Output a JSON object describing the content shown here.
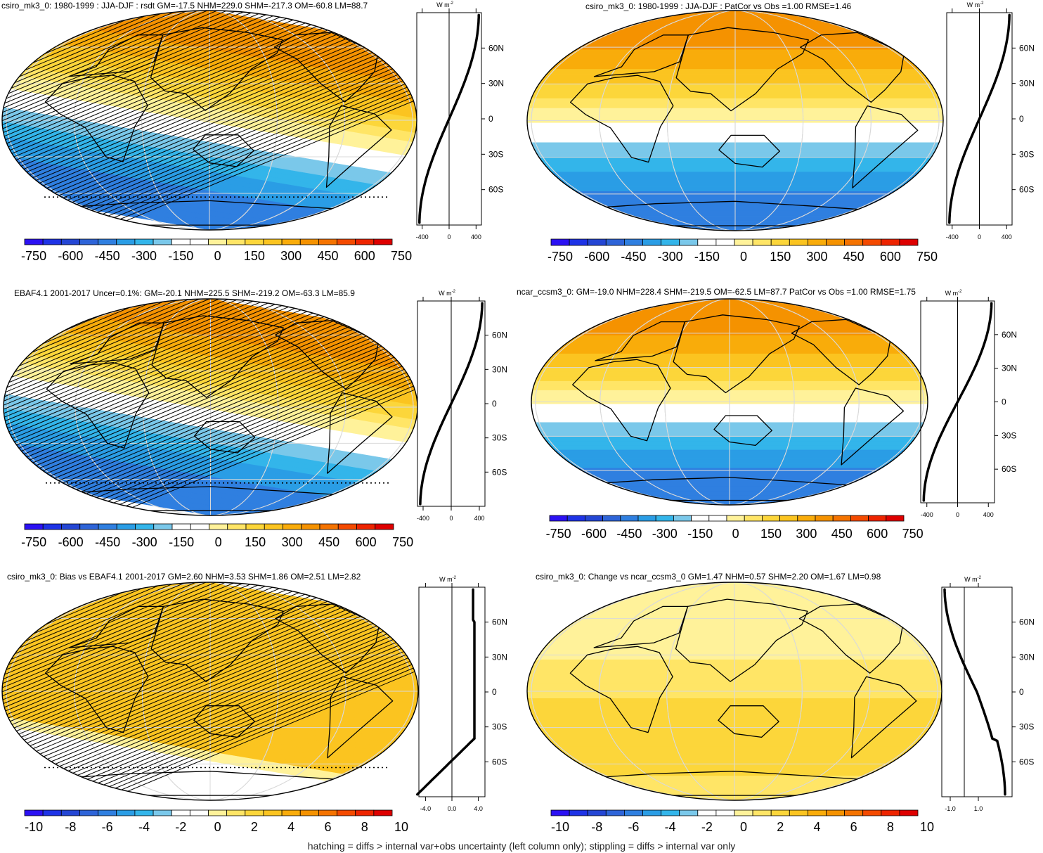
{
  "footer": "hatching = diffs > internal var+obs uncertainty (left column only); stippling = diffs > internal var only",
  "unit_label": "W m",
  "unit_sup": "-2",
  "colors": {
    "ramp": [
      "#2b11f3",
      "#1e33e6",
      "#2446d4",
      "#2e64d8",
      "#2f7fe0",
      "#2a9de5",
      "#33b5ea",
      "#7ac8ea",
      "#ffffff",
      "#ffffff",
      "#fff29a",
      "#ffe566",
      "#fcd63a",
      "#fbc420",
      "#f9ac0a",
      "#f59200",
      "#f57300",
      "#f44a00",
      "#ee2400",
      "#de0000"
    ],
    "land": "#000000",
    "grid": "#d9d9d9"
  },
  "chart_data": [
    {
      "type": "heatmap",
      "panel": "top-left",
      "title": "csiro_mk3_0: 1980-1999 : JJA-DJF : rsdt GM=-17.5 NHM=229.0 SHM=-217.3 OM=-60.8 LM=88.7",
      "field": "sine",
      "amplitude": 420,
      "hatching": true,
      "tilt": 0.3,
      "colorbar_ticks": [
        "-750",
        "-600",
        "-450",
        "-300",
        "-150",
        "0",
        "150",
        "300",
        "450",
        "600",
        "750"
      ],
      "levels": [
        -750,
        -675,
        -600,
        -525,
        -450,
        -375,
        -300,
        -225,
        -150,
        -75,
        0,
        75,
        150,
        225,
        300,
        375,
        450,
        525,
        600,
        675,
        750
      ],
      "profile": {
        "x_ticks": [
          "-400",
          "0",
          "400"
        ],
        "xlim": [
          -480,
          480
        ],
        "y_ticks": [
          "60N",
          "30N",
          "0",
          "30S",
          "60S"
        ]
      }
    },
    {
      "type": "heatmap",
      "panel": "top-right",
      "title": "csiro_mk3_0: 1980-1999 : JJA-DJF : PatCor vs Obs =1.00 RMSE=1.46",
      "field": "sine",
      "amplitude": 420,
      "hatching": false,
      "tilt": 0,
      "colorbar_ticks": [
        "-750",
        "-600",
        "-450",
        "-300",
        "-150",
        "0",
        "150",
        "300",
        "450",
        "600",
        "750"
      ],
      "levels": [
        -750,
        -675,
        -600,
        -525,
        -450,
        -375,
        -300,
        -225,
        -150,
        -75,
        0,
        75,
        150,
        225,
        300,
        375,
        450,
        525,
        600,
        675,
        750
      ],
      "profile": {
        "x_ticks": [
          "-400",
          "0",
          "400"
        ],
        "xlim": [
          -480,
          480
        ],
        "y_ticks": [
          "60N",
          "30N",
          "0",
          "30S",
          "60S"
        ]
      }
    },
    {
      "type": "heatmap",
      "panel": "middle-left",
      "title": "EBAF4.1 2001-2017 Uncer=0.1%: GM=-20.1 NHM=225.5 SHM=-219.2 OM=-63.3 LM=85.9",
      "field": "sine",
      "amplitude": 420,
      "hatching": true,
      "tilt": 0.3,
      "colorbar_ticks": [
        "-750",
        "-600",
        "-450",
        "-300",
        "-150",
        "0",
        "150",
        "300",
        "450",
        "600",
        "750"
      ],
      "levels": [
        -750,
        -675,
        -600,
        -525,
        -450,
        -375,
        -300,
        -225,
        -150,
        -75,
        0,
        75,
        150,
        225,
        300,
        375,
        450,
        525,
        600,
        675,
        750
      ],
      "profile": {
        "x_ticks": [
          "-400",
          "0",
          "400"
        ],
        "xlim": [
          -480,
          480
        ],
        "y_ticks": [
          "60N",
          "30N",
          "0",
          "30S",
          "60S"
        ]
      }
    },
    {
      "type": "heatmap",
      "panel": "middle-right",
      "title": "ncar_ccsm3_0: GM=-19.0 NHM=228.4 SHM=-219.5 OM=-62.5 LM=87.7 PatCor vs Obs =1.00 RMSE=1.75",
      "field": "sine",
      "amplitude": 420,
      "hatching": false,
      "tilt": 0,
      "colorbar_ticks": [
        "-750",
        "-600",
        "-450",
        "-300",
        "-150",
        "0",
        "150",
        "300",
        "450",
        "600",
        "750"
      ],
      "levels": [
        -750,
        -675,
        -600,
        -525,
        -450,
        -375,
        -300,
        -225,
        -150,
        -75,
        0,
        75,
        150,
        225,
        300,
        375,
        450,
        525,
        600,
        675,
        750
      ],
      "profile": {
        "x_ticks": [
          "-400",
          "0",
          "400"
        ],
        "xlim": [
          -480,
          480
        ],
        "y_ticks": [
          "60N",
          "30N",
          "0",
          "30S",
          "60S"
        ]
      }
    },
    {
      "type": "heatmap",
      "panel": "bottom-left",
      "title": "csiro_mk3_0: Bias vs EBAF4.1 2001-2017 GM=2.60 NHM=3.53 SHM=1.86 OM=2.51 LM=2.82",
      "field": "bias",
      "hatching": true,
      "tilt": 0.3,
      "colorbar_ticks": [
        "-10",
        "-8",
        "-6",
        "-4",
        "-2",
        "0",
        "2",
        "4",
        "6",
        "8",
        "10"
      ],
      "levels": [
        -10,
        -9,
        -8,
        -7,
        -6,
        -5,
        -4,
        -3,
        -2,
        -1,
        0,
        1,
        2,
        3,
        4,
        5,
        6,
        7,
        8,
        9,
        10
      ],
      "profile": {
        "x_ticks": [
          "-4.0",
          "0.0",
          "4.0"
        ],
        "xlim": [
          -5,
          5
        ],
        "y_ticks": [
          "60N",
          "30N",
          "0",
          "30S",
          "60S"
        ]
      }
    },
    {
      "type": "heatmap",
      "panel": "bottom-right",
      "title": "csiro_mk3_0: Change vs ncar_ccsm3_0 GM=1.47 NHM=0.57 SHM=2.20 OM=1.67 LM=0.98",
      "field": "change",
      "hatching": false,
      "tilt": 0,
      "colorbar_ticks": [
        "-10",
        "-8",
        "-6",
        "-4",
        "-2",
        "0",
        "2",
        "4",
        "6",
        "8",
        "10"
      ],
      "levels": [
        -10,
        -9,
        -8,
        -7,
        -6,
        -5,
        -4,
        -3,
        -2,
        -1,
        0,
        1,
        2,
        3,
        4,
        5,
        6,
        7,
        8,
        9,
        10
      ],
      "profile": {
        "x_ticks": [
          "-1.0",
          "1.0"
        ],
        "xlim": [
          -1.6,
          3.4
        ],
        "y_ticks": [
          "60N",
          "30N",
          "0",
          "30S",
          "60S"
        ]
      }
    }
  ]
}
